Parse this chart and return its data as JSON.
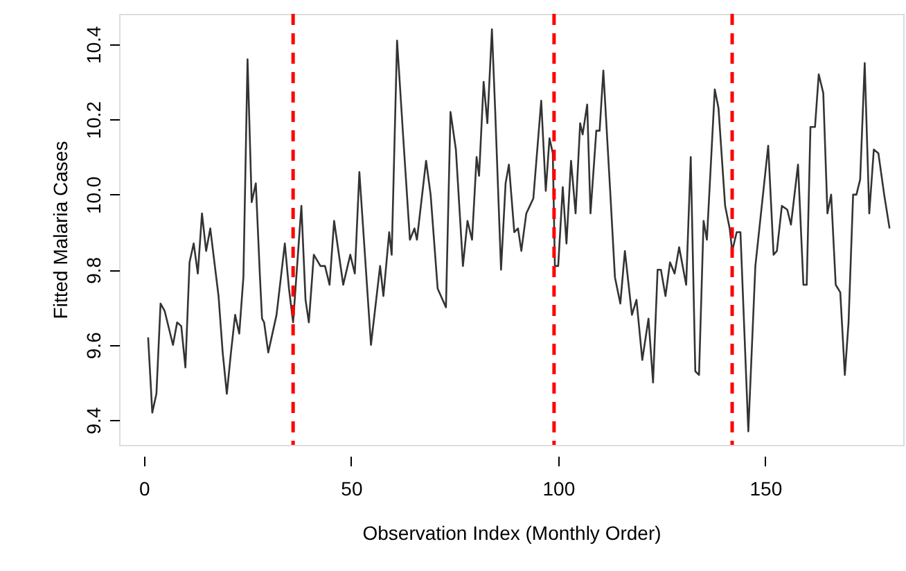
{
  "chart_data": {
    "type": "line",
    "xlabel": "Observation Index (Monthly Order)",
    "ylabel": "Fitted Malaria Cases",
    "xlim": [
      -6,
      183.3
    ],
    "xticks": [
      0,
      50,
      100,
      150
    ],
    "ylim": [
      9.334,
      10.481
    ],
    "yticks": [
      {
        "value": 9.4,
        "label": "9.4"
      },
      {
        "value": 9.6,
        "label": "9.6"
      },
      {
        "value": 9.8,
        "label": "9.8"
      },
      {
        "value": 10.0,
        "label": "10.0"
      },
      {
        "value": 10.2,
        "label": "10.2"
      },
      {
        "value": 10.4,
        "label": "10.4"
      }
    ],
    "grid": false,
    "line_style": "solid",
    "series": [
      {
        "color": "#333333",
        "x": [
          1,
          2,
          3,
          4,
          5,
          7,
          8,
          9,
          10,
          11,
          12,
          13,
          14,
          15,
          16,
          18,
          19,
          20,
          21,
          22,
          23,
          24,
          25,
          26,
          27,
          28,
          28.5,
          29,
          30,
          32,
          34,
          35,
          36,
          38,
          39,
          39.8,
          41,
          42.6,
          43.7,
          44.8,
          45.9,
          48.1,
          49.8,
          50.9,
          52,
          54.8,
          57,
          57.8,
          59.2,
          59.8,
          61.1,
          62.6,
          64.2,
          65.3,
          65.9,
          68.1,
          69.2,
          70.9,
          72.9,
          74,
          75.3,
          77,
          78.1,
          79.2,
          80.3,
          80.9,
          82,
          82.9,
          84,
          84.8,
          86.2,
          87.3,
          88.1,
          89.4,
          90.3,
          91.1,
          92.3,
          94,
          95.9,
          97,
          97.9,
          98.7,
          99.2,
          100,
          101.1,
          102,
          103.1,
          104.2,
          105.3,
          105.9,
          107,
          107.8,
          109.2,
          110,
          110.9,
          112.6,
          113.7,
          115,
          116.1,
          117.8,
          118.9,
          120.3,
          121.8,
          122.9,
          124,
          124.8,
          125.9,
          127,
          128.1,
          129.2,
          130.9,
          132,
          133.1,
          134,
          135.1,
          135.9,
          137.8,
          138.7,
          140.3,
          141.4,
          142,
          143.1,
          144,
          145.9,
          147.6,
          150.7,
          152,
          152.8,
          154,
          155.3,
          156.2,
          157.9,
          159.2,
          160,
          160.9,
          162,
          162.9,
          164,
          165,
          165.9,
          167,
          168.1,
          169.2,
          170.1,
          171.2,
          172,
          172.9,
          174,
          175.1,
          176.2,
          177.3,
          178.7,
          180
        ],
        "values": [
          9.62,
          9.42,
          9.47,
          9.71,
          9.69,
          9.6,
          9.66,
          9.65,
          9.54,
          9.82,
          9.87,
          9.79,
          9.95,
          9.85,
          9.91,
          9.73,
          9.58,
          9.47,
          9.58,
          9.68,
          9.63,
          9.78,
          10.36,
          9.98,
          10.03,
          9.78,
          9.67,
          9.66,
          9.58,
          9.68,
          9.87,
          9.75,
          9.66,
          9.97,
          9.72,
          9.66,
          9.84,
          9.81,
          9.81,
          9.76,
          9.93,
          9.76,
          9.84,
          9.79,
          10.06,
          9.6,
          9.81,
          9.73,
          9.9,
          9.84,
          10.41,
          10.15,
          9.88,
          9.91,
          9.88,
          10.09,
          10.0,
          9.75,
          9.7,
          10.22,
          10.12,
          9.81,
          9.93,
          9.88,
          10.1,
          10.05,
          10.3,
          10.19,
          10.44,
          10.22,
          9.8,
          10.03,
          10.08,
          9.9,
          9.91,
          9.85,
          9.95,
          9.99,
          10.25,
          10.01,
          10.15,
          10.11,
          9.81,
          9.81,
          10.02,
          9.87,
          10.09,
          9.95,
          10.19,
          10.16,
          10.24,
          9.95,
          10.17,
          10.17,
          10.33,
          10.0,
          9.78,
          9.71,
          9.85,
          9.68,
          9.72,
          9.56,
          9.67,
          9.5,
          9.8,
          9.8,
          9.73,
          9.82,
          9.79,
          9.86,
          9.76,
          10.1,
          9.53,
          9.52,
          9.93,
          9.88,
          10.28,
          10.23,
          9.97,
          9.91,
          9.85,
          9.9,
          9.9,
          9.37,
          9.81,
          10.13,
          9.84,
          9.85,
          9.97,
          9.96,
          9.92,
          10.08,
          9.76,
          9.76,
          10.18,
          10.18,
          10.32,
          10.27,
          9.95,
          10.0,
          9.76,
          9.74,
          9.52,
          9.66,
          10.0,
          10.0,
          10.04,
          10.35,
          9.95,
          10.12,
          10.11,
          10.0,
          9.91
        ]
      }
    ],
    "ref_lines": [
      {
        "axis": "x",
        "value": 36,
        "color": "#ff0000",
        "line_style": "dashed"
      },
      {
        "axis": "x",
        "value": 99,
        "color": "#ff0000",
        "line_style": "dashed"
      },
      {
        "axis": "x",
        "value": 142,
        "color": "#ff0000",
        "line_style": "dashed"
      }
    ]
  }
}
